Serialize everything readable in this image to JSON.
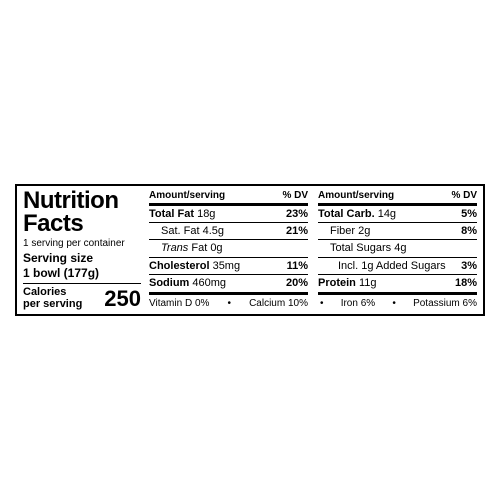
{
  "title_line1": "Nutrition",
  "title_line2": "Facts",
  "servings_per": "1 serving per container",
  "serving_size_label": "Serving size",
  "serving_size_value": "1 bowl (177g)",
  "calories_label1": "Calories",
  "calories_label2": "per serving",
  "calories_value": "250",
  "header_amount": "Amount/serving",
  "header_dv": "% DV",
  "col1": [
    {
      "label": "Total Fat",
      "amount": "18g",
      "dv": "23%",
      "bold": true,
      "indent": 0
    },
    {
      "label": "Sat. Fat",
      "amount": "4.5g",
      "dv": "21%",
      "bold": false,
      "indent": 1
    },
    {
      "label": "Trans Fat",
      "amount": "0g",
      "dv": "",
      "bold": false,
      "indent": 1,
      "italic": true
    },
    {
      "label": "Cholesterol",
      "amount": "35mg",
      "dv": "11%",
      "bold": true,
      "indent": 0
    },
    {
      "label": "Sodium",
      "amount": "460mg",
      "dv": "20%",
      "bold": true,
      "indent": 0
    }
  ],
  "col2": [
    {
      "label": "Total Carb.",
      "amount": "14g",
      "dv": "5%",
      "bold": true,
      "indent": 0
    },
    {
      "label": "Fiber",
      "amount": "2g",
      "dv": "8%",
      "bold": false,
      "indent": 1
    },
    {
      "label": "Total Sugars",
      "amount": "4g",
      "dv": "",
      "bold": false,
      "indent": 1
    },
    {
      "label": "Incl. 1g Added Sugars",
      "amount": "",
      "dv": "3%",
      "bold": false,
      "indent": 2
    },
    {
      "label": "Protein",
      "amount": "11g",
      "dv": "18%",
      "bold": true,
      "indent": 0
    }
  ],
  "footer": {
    "vitamin_d": "Vitamin D 0%",
    "calcium": "Calcium 10%",
    "iron": "Iron 6%",
    "potassium": "Potassium 6%"
  }
}
